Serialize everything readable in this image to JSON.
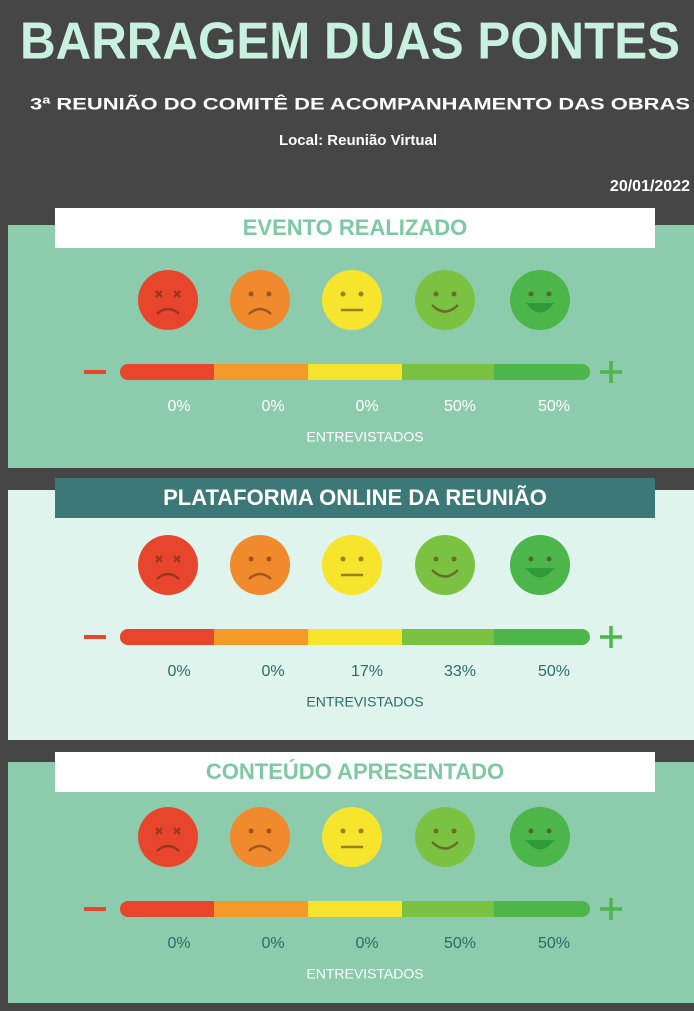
{
  "header": {
    "title": "BARRAGEM DUAS PONTES",
    "subtitle": "3ª REUNIÃO DO COMITÊ DE ACOMPANHAMENTO DAS OBRAS",
    "location": "Local: Reunião Virtual",
    "date": "20/01/2022"
  },
  "sections": [
    {
      "title": "EVENTO REALIZADO",
      "percentages": [
        "0%",
        "0%",
        "0%",
        "50%",
        "50%"
      ],
      "label": "ENTREVISTADOS"
    },
    {
      "title": "PLATAFORMA ONLINE DA REUNIÃO",
      "percentages": [
        "0%",
        "0%",
        "17%",
        "33%",
        "50%"
      ],
      "label": "ENTREVISTADOS"
    },
    {
      "title": "CONTEÚDO APRESENTADO",
      "percentages": [
        "0%",
        "0%",
        "0%",
        "50%",
        "50%"
      ],
      "label": "ENTREVISTADOS"
    }
  ]
}
